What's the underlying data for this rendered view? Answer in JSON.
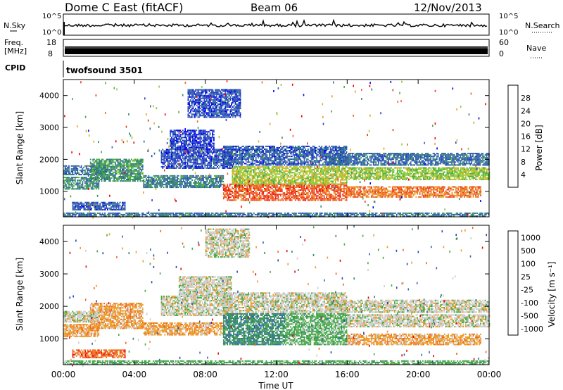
{
  "header": {
    "radar": "Dome C East (fitACF)",
    "beam": "Beam 06",
    "date": "12/Nov/2013"
  },
  "nsky_panel": {
    "left_label": "N.Sky",
    "left_ticks": [
      "10^5",
      "10^0"
    ],
    "right_label": "N.Search",
    "right_ticks": [
      "10^5",
      "10^0"
    ]
  },
  "freq_panel": {
    "left_label_1": "Freq.",
    "left_label_2": "[MHz]",
    "left_ticks": [
      "18",
      "8"
    ],
    "right_label": "Nave",
    "right_ticks": [
      "60",
      "0"
    ]
  },
  "cpid_panel": {
    "label": "CPID",
    "value": "twofsound 3501"
  },
  "chart_data": [
    {
      "type": "heatmap",
      "name": "power",
      "ylabel": "Slant Range [km]",
      "xlabel": "",
      "ylim": [
        200,
        4500
      ],
      "xlim_hours": [
        0,
        24
      ],
      "y_ticks": [
        "1000",
        "2000",
        "3000",
        "4000"
      ],
      "colorbar": {
        "label": "Power [dB]",
        "ticks": [
          "4",
          "8",
          "12",
          "16",
          "20",
          "24",
          "28"
        ],
        "range": [
          0,
          32
        ],
        "colors": [
          "#0000ee",
          "#2244bb",
          "#3366aa",
          "#338866",
          "#44aa44",
          "#88cc33",
          "#ccbb22",
          "#ee9922",
          "#ee6622",
          "#ee3322",
          "#ee0000"
        ]
      },
      "bands": [
        {
          "t0": 0.0,
          "t1": 2.0,
          "r0": 1050,
          "r1": 1450,
          "v": 10
        },
        {
          "t0": 0.0,
          "t1": 2.5,
          "r0": 1500,
          "r1": 1800,
          "v": 7
        },
        {
          "t0": 1.5,
          "t1": 4.5,
          "r0": 1300,
          "r1": 2000,
          "v": 11
        },
        {
          "t0": 0.5,
          "t1": 3.5,
          "r0": 400,
          "r1": 650,
          "v": 6
        },
        {
          "t0": 4.5,
          "t1": 9.0,
          "r0": 1100,
          "r1": 1500,
          "v": 9
        },
        {
          "t0": 5.5,
          "t1": 9.5,
          "r0": 1700,
          "r1": 2300,
          "v": 5
        },
        {
          "t0": 6.0,
          "t1": 8.5,
          "r0": 2300,
          "r1": 2900,
          "v": 4
        },
        {
          "t0": 7.0,
          "t1": 10.0,
          "r0": 3300,
          "r1": 4200,
          "v": 5
        },
        {
          "t0": 9.0,
          "t1": 16.0,
          "r0": 700,
          "r1": 1200,
          "v": 26
        },
        {
          "t0": 9.5,
          "t1": 16.0,
          "r0": 1200,
          "r1": 1750,
          "v": 17
        },
        {
          "t0": 9.0,
          "t1": 16.0,
          "r0": 1800,
          "r1": 2400,
          "v": 6
        },
        {
          "t0": 16.0,
          "t1": 23.5,
          "r0": 800,
          "r1": 1150,
          "v": 24
        },
        {
          "t0": 16.0,
          "t1": 24.0,
          "r0": 1350,
          "r1": 1750,
          "v": 16
        },
        {
          "t0": 15.0,
          "t1": 24.0,
          "r0": 1800,
          "r1": 2200,
          "v": 7
        },
        {
          "t0": 0.0,
          "t1": 24.0,
          "r0": 200,
          "r1": 300,
          "v": 8
        }
      ]
    },
    {
      "type": "heatmap",
      "name": "velocity",
      "ylabel": "Slant Range [km]",
      "xlabel": "Time UT",
      "ylim": [
        200,
        4500
      ],
      "xlim_hours": [
        0,
        24
      ],
      "y_ticks": [
        "1000",
        "2000",
        "3000",
        "4000"
      ],
      "x_ticks": [
        "00:00",
        "04:00",
        "08:00",
        "12:00",
        "16:00",
        "20:00",
        "00:00"
      ],
      "colorbar": {
        "label": "Velocity [m s⁻¹]",
        "ticks": [
          "1000",
          "500",
          "100",
          "25",
          "-25",
          "-100",
          "-500",
          "-1000"
        ],
        "colors": [
          "#2244bb",
          "#3366aa",
          "#338866",
          "#44aa44",
          "#cccccc",
          "#ee9922",
          "#ee6622",
          "#ee0000"
        ]
      },
      "bands": [
        {
          "t0": 0.0,
          "t1": 2.0,
          "r0": 1050,
          "r1": 1450,
          "v": 5
        },
        {
          "t0": 1.5,
          "t1": 4.5,
          "r0": 1300,
          "r1": 2100,
          "v": 5
        },
        {
          "t0": 0.5,
          "t1": 3.5,
          "r0": 400,
          "r1": 650,
          "v": 6
        },
        {
          "t0": 0.0,
          "t1": 2.0,
          "r0": 1500,
          "r1": 1850,
          "v": 4
        },
        {
          "t0": 4.5,
          "t1": 9.0,
          "r0": 1100,
          "r1": 1500,
          "v": 5
        },
        {
          "t0": 5.5,
          "t1": 9.5,
          "r0": 1700,
          "r1": 2300,
          "v": 4
        },
        {
          "t0": 6.5,
          "t1": 9.5,
          "r0": 2300,
          "r1": 2900,
          "v": 4
        },
        {
          "t0": 8.0,
          "t1": 10.5,
          "r0": 3500,
          "r1": 4400,
          "v": 4
        },
        {
          "t0": 9.0,
          "t1": 12.5,
          "r0": 800,
          "r1": 1750,
          "v": 2
        },
        {
          "t0": 12.5,
          "t1": 16.0,
          "r0": 800,
          "r1": 1750,
          "v": 3
        },
        {
          "t0": 9.0,
          "t1": 16.0,
          "r0": 1800,
          "r1": 2400,
          "v": 4
        },
        {
          "t0": 16.0,
          "t1": 23.5,
          "r0": 800,
          "r1": 1150,
          "v": 5
        },
        {
          "t0": 16.0,
          "t1": 24.0,
          "r0": 1350,
          "r1": 1750,
          "v": 4
        },
        {
          "t0": 15.0,
          "t1": 24.0,
          "r0": 1800,
          "r1": 2200,
          "v": 4
        },
        {
          "t0": 0.0,
          "t1": 24.0,
          "r0": 200,
          "r1": 300,
          "v": 3
        }
      ]
    }
  ]
}
